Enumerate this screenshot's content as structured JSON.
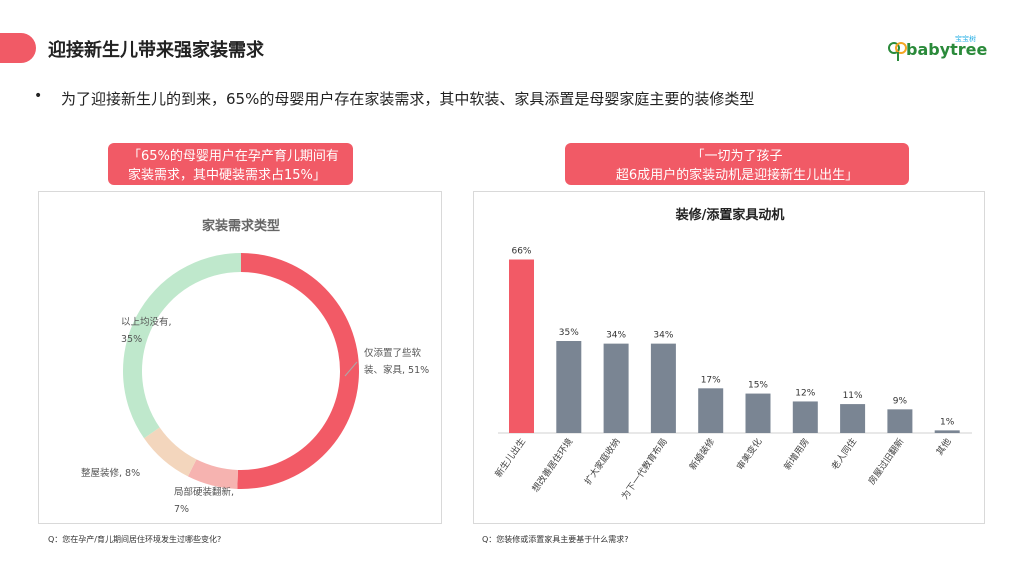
{
  "header": {
    "title": "迎接新生儿带来强家装需求",
    "accent_color": "#f15a66"
  },
  "logo": {
    "cn": "宝宝树",
    "text": "babytree"
  },
  "bullet_symbol": "•",
  "subtitle": "为了迎接新生儿的到来，65%的母婴用户存在家装需求，其中软装、家具添置是母婴家庭主要的装修类型",
  "callouts": {
    "left": [
      "「65%的母婴用户在孕产育儿期间有",
      "家装需求，其中硬装需求占15%」"
    ],
    "right": [
      "「一切为了孩子",
      "超6成用户的家装动机是迎接新生儿出生」"
    ]
  },
  "footnotes": {
    "left": "Q：您在孕产/育儿期间居住环境发生过哪些变化?",
    "right": "Q：您装修或添置家具主要基于什么需求?"
  },
  "chart_data": [
    {
      "type": "pie",
      "title": "家装需求类型",
      "labels": [
        "仅添置了些软装、家具",
        "局部硬装翻新",
        "整屋装修",
        "以上均没有"
      ],
      "values": [
        51,
        7,
        8,
        35
      ],
      "label_texts": [
        [
          "仅添置了些软",
          "装、家具, 51%"
        ],
        [
          "局部硬装翻新,",
          "7%"
        ],
        [
          "整屋装修, 8%"
        ],
        [
          "以上均没有,",
          "35%"
        ]
      ],
      "colors": [
        "#f25a66",
        "#f6b3b0",
        "#f3d6bd",
        "#bfe8cc"
      ]
    },
    {
      "type": "bar",
      "title": "装修/添置家具动机",
      "categories": [
        "新生儿出生",
        "想改善居住环境",
        "扩大家庭收纳",
        "为下一代教育布局",
        "新婚装修",
        "审美变化",
        "新增用房",
        "老人同住",
        "房屋过旧翻新",
        "其他"
      ],
      "values": [
        66,
        35,
        34,
        34,
        17,
        15,
        12,
        11,
        9,
        1
      ],
      "value_labels": [
        "66%",
        "35%",
        "34%",
        "34%",
        "17%",
        "15%",
        "12%",
        "11%",
        "9%",
        "1%"
      ],
      "ylim": [
        0,
        70
      ],
      "highlight_color": "#f25a66",
      "bar_color": "#7a8593"
    }
  ]
}
